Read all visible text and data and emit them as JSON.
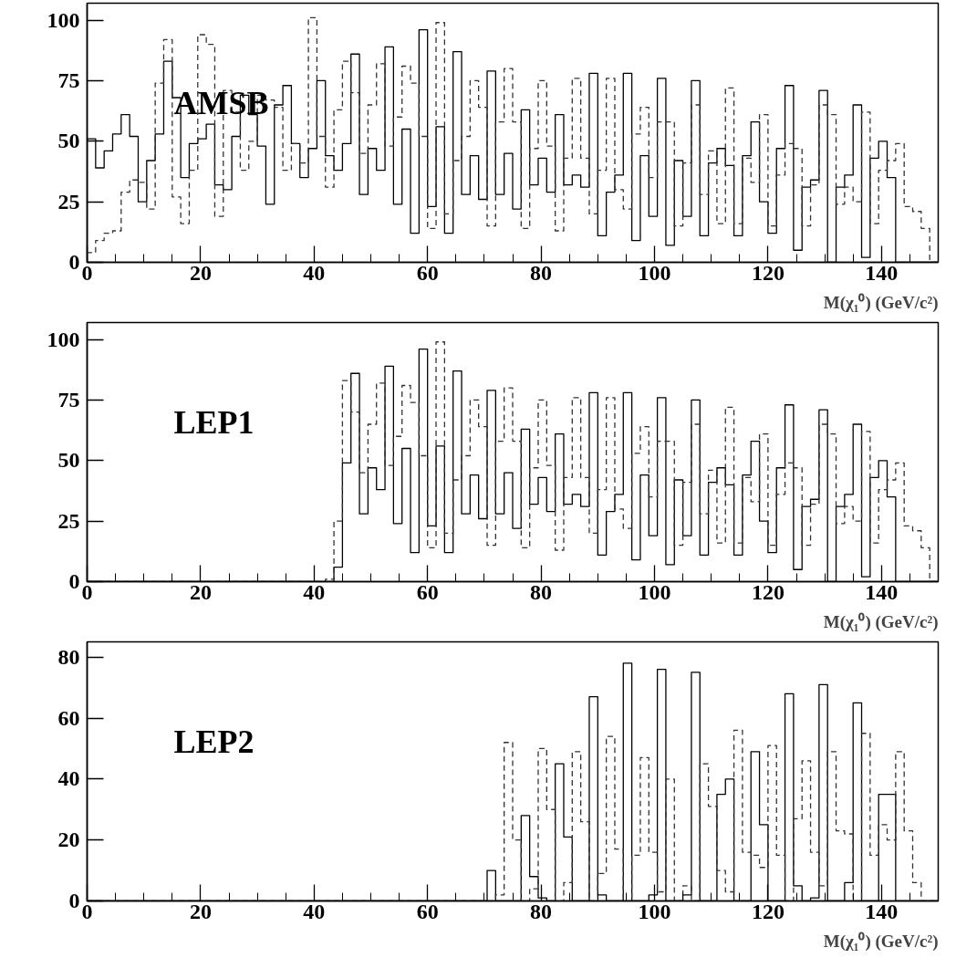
{
  "chart_data": [
    {
      "type": "histogram",
      "xlabel": "M(χ₁⁰) (GeV/c²)",
      "annotations": [
        "AMSB"
      ],
      "xlim": [
        0,
        150
      ],
      "ylim": [
        0,
        107
      ],
      "xticks": [
        0,
        20,
        40,
        60,
        80,
        100,
        120,
        140
      ],
      "yticks": [
        0,
        25,
        50,
        75,
        100
      ],
      "bins": [
        0,
        1.5,
        3,
        4.5,
        6,
        7.5,
        9,
        10.5,
        12,
        13.5,
        15,
        16.5,
        18,
        19.5,
        21,
        22.5,
        24,
        25.5,
        27,
        28.5,
        30,
        31.5,
        33,
        34.5,
        36,
        37.5,
        39,
        40.5,
        42,
        43.5,
        45,
        46.5,
        48,
        49.5,
        51,
        52.5,
        54,
        55.5,
        57,
        58.5,
        60,
        61.5,
        63,
        64.5,
        66,
        67.5,
        69,
        70.5,
        72,
        73.5,
        75,
        76.5,
        78,
        79.5,
        81,
        82.5,
        84,
        85.5,
        87,
        88.5,
        90,
        91.5,
        93,
        94.5,
        96,
        97.5,
        99,
        100.5,
        102,
        103.5,
        105,
        106.5,
        108,
        109.5,
        111,
        112.5,
        114,
        115.5,
        117,
        118.5,
        120,
        121.5,
        123,
        124.5,
        126,
        127.5,
        129,
        130.5,
        132,
        133.5,
        135,
        136.5,
        138,
        139.5,
        141,
        142.5,
        144,
        145.5,
        147,
        148.5,
        150
      ],
      "series": [
        {
          "color": "#000000",
          "line_style": "solid",
          "values": [
            51,
            39,
            46,
            53,
            61,
            52,
            25,
            42,
            53,
            83,
            68,
            35,
            49,
            51,
            57,
            32,
            30,
            52,
            69,
            61,
            48,
            24,
            65,
            73,
            49,
            35,
            47,
            75,
            44,
            38,
            49,
            86,
            28,
            47,
            38,
            89,
            24,
            55,
            12,
            96,
            23,
            56,
            12,
            87,
            28,
            44,
            26,
            79,
            28,
            45,
            22,
            63,
            32,
            43,
            29,
            61,
            32,
            36,
            31,
            78,
            11,
            29,
            36,
            78,
            9,
            44,
            19,
            76,
            7,
            42,
            19,
            75,
            11,
            41,
            47,
            40,
            11,
            44,
            58,
            25,
            12,
            47,
            73,
            5,
            31,
            34,
            71,
            0,
            31,
            36,
            65,
            2,
            43,
            50,
            35,
            0,
            0,
            0,
            0,
            0
          ]
        },
        {
          "color": "#333333",
          "line_style": "dashed",
          "values": [
            4,
            9,
            12,
            13,
            29,
            34,
            33,
            22,
            74,
            92,
            27,
            16,
            38,
            94,
            90,
            19,
            71,
            62,
            38,
            50,
            69,
            67,
            64,
            38,
            49,
            41,
            101,
            52,
            31,
            63,
            83,
            70,
            45,
            65,
            82,
            48,
            60,
            81,
            74,
            52,
            14,
            99,
            20,
            42,
            52,
            75,
            64,
            15,
            58,
            80,
            58,
            14,
            47,
            75,
            48,
            13,
            43,
            76,
            43,
            20,
            38,
            76,
            30,
            22,
            53,
            64,
            35,
            58,
            58,
            15,
            41,
            65,
            28,
            46,
            16,
            72,
            16,
            43,
            33,
            61,
            15,
            36,
            49,
            47,
            15,
            32,
            65,
            61,
            24,
            31,
            25,
            62,
            16,
            38,
            42,
            49,
            23,
            21,
            14,
            0
          ]
        }
      ]
    },
    {
      "type": "histogram",
      "xlabel": "M(χ₁⁰) (GeV/c²)",
      "annotations": [
        "LEP1"
      ],
      "xlim": [
        0,
        150
      ],
      "ylim": [
        0,
        107
      ],
      "xticks": [
        0,
        20,
        40,
        60,
        80,
        100,
        120,
        140
      ],
      "yticks": [
        0,
        25,
        50,
        75,
        100
      ],
      "bins": [
        0,
        1.5,
        3,
        4.5,
        6,
        7.5,
        9,
        10.5,
        12,
        13.5,
        15,
        16.5,
        18,
        19.5,
        21,
        22.5,
        24,
        25.5,
        27,
        28.5,
        30,
        31.5,
        33,
        34.5,
        36,
        37.5,
        39,
        40.5,
        42,
        43.5,
        45,
        46.5,
        48,
        49.5,
        51,
        52.5,
        54,
        55.5,
        57,
        58.5,
        60,
        61.5,
        63,
        64.5,
        66,
        67.5,
        69,
        70.5,
        72,
        73.5,
        75,
        76.5,
        78,
        79.5,
        81,
        82.5,
        84,
        85.5,
        87,
        88.5,
        90,
        91.5,
        93,
        94.5,
        96,
        97.5,
        99,
        100.5,
        102,
        103.5,
        105,
        106.5,
        108,
        109.5,
        111,
        112.5,
        114,
        115.5,
        117,
        118.5,
        120,
        121.5,
        123,
        124.5,
        126,
        127.5,
        129,
        130.5,
        132,
        133.5,
        135,
        136.5,
        138,
        139.5,
        141,
        142.5,
        144,
        145.5,
        147,
        148.5,
        150
      ],
      "series": [
        {
          "color": "#000000",
          "line_style": "solid",
          "values": [
            0,
            0,
            0,
            0,
            0,
            0,
            0,
            0,
            0,
            0,
            0,
            0,
            0,
            0,
            0,
            0,
            0,
            0,
            0,
            0,
            0,
            0,
            0,
            0,
            0,
            0,
            0,
            0,
            0,
            6,
            49,
            86,
            28,
            47,
            38,
            89,
            24,
            55,
            12,
            96,
            23,
            56,
            12,
            87,
            28,
            44,
            26,
            79,
            28,
            45,
            22,
            63,
            32,
            43,
            29,
            61,
            32,
            36,
            31,
            78,
            11,
            29,
            36,
            78,
            9,
            44,
            19,
            76,
            7,
            42,
            19,
            75,
            11,
            41,
            47,
            40,
            11,
            44,
            58,
            25,
            12,
            47,
            73,
            5,
            31,
            34,
            71,
            0,
            31,
            36,
            65,
            2,
            43,
            50,
            35,
            0,
            0,
            0,
            0,
            0
          ]
        },
        {
          "color": "#333333",
          "line_style": "dashed",
          "values": [
            0,
            0,
            0,
            0,
            0,
            0,
            0,
            0,
            0,
            0,
            0,
            0,
            0,
            0,
            0,
            0,
            0,
            0,
            0,
            0,
            0,
            0,
            0,
            0,
            0,
            0,
            0,
            0,
            1,
            25,
            83,
            70,
            45,
            65,
            82,
            48,
            60,
            81,
            74,
            52,
            14,
            99,
            20,
            42,
            52,
            75,
            64,
            15,
            58,
            80,
            58,
            14,
            47,
            75,
            48,
            13,
            43,
            76,
            43,
            20,
            38,
            76,
            30,
            22,
            53,
            64,
            35,
            58,
            58,
            15,
            41,
            65,
            28,
            46,
            16,
            72,
            16,
            43,
            33,
            61,
            15,
            36,
            49,
            47,
            15,
            32,
            65,
            61,
            24,
            31,
            25,
            62,
            16,
            38,
            42,
            49,
            23,
            21,
            14,
            0
          ]
        }
      ]
    },
    {
      "type": "histogram",
      "xlabel": "M(χ₁⁰) (GeV/c²)",
      "annotations": [
        "LEP2"
      ],
      "xlim": [
        0,
        150
      ],
      "ylim": [
        0,
        85
      ],
      "xticks": [
        0,
        20,
        40,
        60,
        80,
        100,
        120,
        140
      ],
      "yticks": [
        0,
        20,
        40,
        60,
        80
      ],
      "bins": [
        0,
        1.5,
        3,
        4.5,
        6,
        7.5,
        9,
        10.5,
        12,
        13.5,
        15,
        16.5,
        18,
        19.5,
        21,
        22.5,
        24,
        25.5,
        27,
        28.5,
        30,
        31.5,
        33,
        34.5,
        36,
        37.5,
        39,
        40.5,
        42,
        43.5,
        45,
        46.5,
        48,
        49.5,
        51,
        52.5,
        54,
        55.5,
        57,
        58.5,
        60,
        61.5,
        63,
        64.5,
        66,
        67.5,
        69,
        70.5,
        72,
        73.5,
        75,
        76.5,
        78,
        79.5,
        81,
        82.5,
        84,
        85.5,
        87,
        88.5,
        90,
        91.5,
        93,
        94.5,
        96,
        97.5,
        99,
        100.5,
        102,
        103.5,
        105,
        106.5,
        108,
        109.5,
        111,
        112.5,
        114,
        115.5,
        117,
        118.5,
        120,
        121.5,
        123,
        124.5,
        126,
        127.5,
        129,
        130.5,
        132,
        133.5,
        135,
        136.5,
        138,
        139.5,
        141,
        142.5,
        144,
        145.5,
        147,
        148.5,
        150
      ],
      "series": [
        {
          "color": "#000000",
          "line_style": "solid",
          "values": [
            0,
            0,
            0,
            0,
            0,
            0,
            0,
            0,
            0,
            0,
            0,
            0,
            0,
            0,
            0,
            0,
            0,
            0,
            0,
            0,
            0,
            0,
            0,
            0,
            0,
            0,
            0,
            0,
            0,
            0,
            0,
            0,
            0,
            0,
            0,
            0,
            0,
            0,
            0,
            0,
            0,
            0,
            0,
            0,
            0,
            0,
            0,
            10,
            0,
            0,
            0,
            28,
            8,
            1,
            0,
            45,
            21,
            0,
            0,
            67,
            2,
            0,
            0,
            78,
            0,
            0,
            2,
            76,
            0,
            0,
            2,
            75,
            0,
            0,
            35,
            40,
            0,
            0,
            49,
            25,
            0,
            0,
            68,
            5,
            0,
            1,
            71,
            0,
            0,
            6,
            65,
            0,
            0,
            35,
            35,
            0,
            0,
            0,
            0,
            0
          ]
        },
        {
          "color": "#333333",
          "line_style": "dashed",
          "values": [
            0,
            0,
            0,
            0,
            0,
            0,
            0,
            0,
            0,
            0,
            0,
            0,
            0,
            0,
            0,
            0,
            0,
            0,
            0,
            0,
            0,
            0,
            0,
            0,
            0,
            0,
            0,
            0,
            0,
            0,
            0,
            0,
            0,
            0,
            0,
            0,
            0,
            0,
            0,
            0,
            0,
            0,
            0,
            0,
            0,
            0,
            0,
            0,
            2,
            52,
            20,
            0,
            4,
            50,
            30,
            0,
            6,
            49,
            26,
            0,
            9,
            54,
            17,
            0,
            15,
            47,
            16,
            3,
            40,
            0,
            5,
            0,
            45,
            31,
            10,
            3,
            56,
            16,
            15,
            11,
            51,
            15,
            0,
            27,
            46,
            16,
            5,
            49,
            23,
            22,
            0,
            55,
            15,
            25,
            20,
            49,
            23,
            6,
            0,
            0
          ]
        }
      ]
    }
  ]
}
